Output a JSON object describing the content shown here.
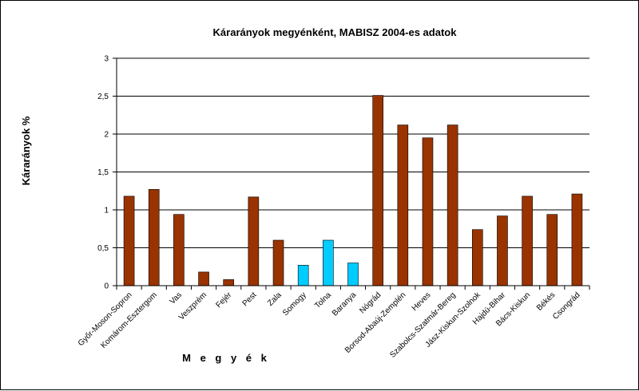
{
  "chart_data": {
    "type": "bar",
    "title": "Kárarányok megyénként, MABISZ 2004-es adatok",
    "ylabel": "Kárarányok %",
    "xlabel": "M e g y é k",
    "ylim": [
      0,
      3
    ],
    "yticks": [
      "0",
      "0,5",
      "1",
      "1,5",
      "2",
      "2,5",
      "3"
    ],
    "grid": true,
    "categories": [
      "Győr-Moson-Sopron",
      "Komárom-Esztergom",
      "Vas",
      "Veszprém",
      "Fejér",
      "Pest",
      "Zala",
      "Somogy",
      "Tolna",
      "Baranya",
      "Nógrád",
      "Borsod-Abaúj-Zemplén",
      "Heves",
      "Szabolcs-Szatmár-Bereg",
      "Jász-Kiskun-Szolnok",
      "Hajdú-Bihar",
      "Bács-Kiskun",
      "Békés",
      "Csongrád"
    ],
    "values": [
      1.18,
      1.27,
      0.94,
      0.18,
      0.08,
      1.17,
      0.6,
      0.27,
      0.6,
      0.3,
      2.51,
      2.12,
      1.95,
      2.12,
      0.74,
      0.92,
      1.18,
      0.94,
      1.21
    ],
    "colors": [
      "#993300",
      "#993300",
      "#993300",
      "#993300",
      "#993300",
      "#993300",
      "#993300",
      "#00CCFF",
      "#00CCFF",
      "#00CCFF",
      "#993300",
      "#993300",
      "#993300",
      "#993300",
      "#993300",
      "#993300",
      "#993300",
      "#993300",
      "#993300"
    ]
  }
}
